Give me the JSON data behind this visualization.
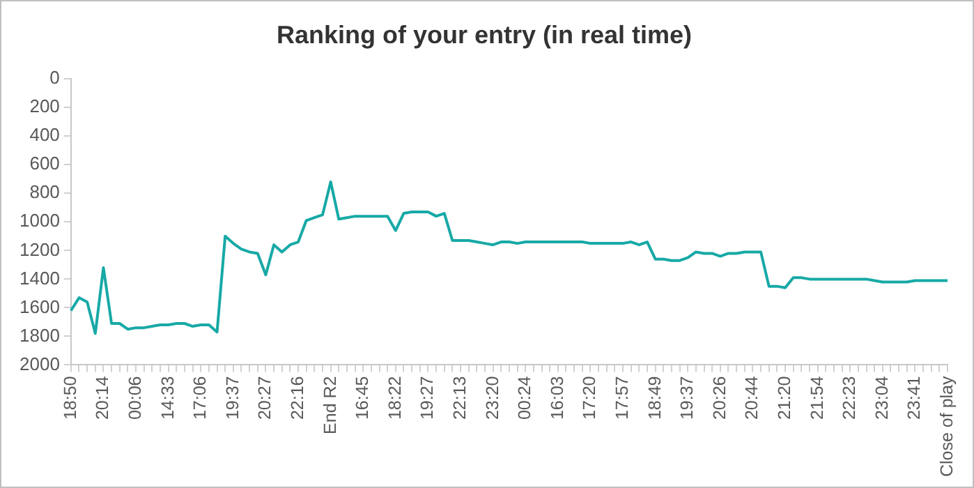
{
  "chart_data": {
    "type": "line",
    "title": "Ranking of your entry (in real time)",
    "categories": [
      "18:50",
      null,
      null,
      null,
      "20:14",
      null,
      null,
      null,
      "00:06",
      null,
      null,
      null,
      "14:33",
      null,
      null,
      null,
      "17:06",
      null,
      null,
      null,
      "19:37",
      null,
      null,
      null,
      "20:27",
      null,
      null,
      null,
      "22:16",
      null,
      null,
      null,
      "End R2",
      null,
      null,
      null,
      "16:45",
      null,
      null,
      null,
      "18:22",
      null,
      null,
      null,
      "19:27",
      null,
      null,
      null,
      "22:13",
      null,
      null,
      null,
      "23:20",
      null,
      null,
      null,
      "00:24",
      null,
      null,
      null,
      "16:03",
      null,
      null,
      null,
      "17:20",
      null,
      null,
      null,
      "17:57",
      null,
      null,
      null,
      "18:49",
      null,
      null,
      null,
      "19:37",
      null,
      null,
      null,
      "20:26",
      null,
      null,
      null,
      "20:44",
      null,
      null,
      null,
      "21:20",
      null,
      null,
      null,
      "21:54",
      null,
      null,
      null,
      "22:23",
      null,
      null,
      null,
      "23:04",
      null,
      null,
      null,
      "23:41",
      null,
      null,
      null,
      "Close of play"
    ],
    "series": [
      {
        "color": "#17a9a6",
        "values": [
          1620,
          1530,
          1560,
          1780,
          1320,
          1710,
          1710,
          1750,
          1740,
          1740,
          1730,
          1720,
          1720,
          1710,
          1710,
          1730,
          1720,
          1720,
          1770,
          1100,
          1150,
          1190,
          1210,
          1220,
          1370,
          1160,
          1210,
          1160,
          1140,
          990,
          970,
          950,
          720,
          980,
          970,
          960,
          960,
          960,
          960,
          960,
          1060,
          940,
          930,
          930,
          930,
          960,
          940,
          1130,
          1130,
          1130,
          1140,
          1150,
          1160,
          1140,
          1140,
          1150,
          1140,
          1140,
          1140,
          1140,
          1140,
          1140,
          1140,
          1140,
          1150,
          1150,
          1150,
          1150,
          1150,
          1140,
          1160,
          1140,
          1260,
          1260,
          1270,
          1270,
          1250,
          1210,
          1220,
          1220,
          1240,
          1220,
          1220,
          1210,
          1210,
          1210,
          1450,
          1450,
          1460,
          1390,
          1390,
          1400,
          1400,
          1400,
          1400,
          1400,
          1400,
          1400,
          1400,
          1410,
          1420,
          1420,
          1420,
          1420,
          1410,
          1410,
          1410,
          1410,
          1410
        ]
      }
    ],
    "ylim": [
      2000,
      0
    ],
    "yticks": [
      0,
      200,
      400,
      600,
      800,
      1000,
      1200,
      1400,
      1600,
      1800,
      2000
    ],
    "grid": false,
    "marker": "none",
    "line_style": "solid",
    "legend": false
  }
}
